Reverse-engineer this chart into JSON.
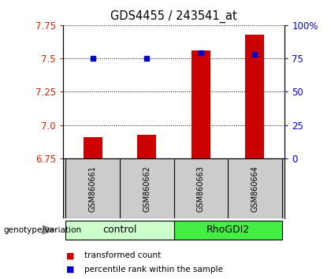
{
  "title": "GDS4455 / 243541_at",
  "samples": [
    "GSM860661",
    "GSM860662",
    "GSM860663",
    "GSM860664"
  ],
  "group_names": [
    "control",
    "RhoGDI2"
  ],
  "group_colors_light": [
    "#ccffcc",
    "#44ee44"
  ],
  "bar_values": [
    6.91,
    6.93,
    7.56,
    7.68
  ],
  "percentile_values": [
    75,
    75,
    79,
    78
  ],
  "ylim_left": [
    6.75,
    7.75
  ],
  "yticks_left": [
    6.75,
    7.0,
    7.25,
    7.5,
    7.75
  ],
  "yticks_right": [
    0,
    25,
    50,
    75,
    100
  ],
  "ytick_labels_right": [
    "0",
    "25",
    "50",
    "75",
    "100%"
  ],
  "bar_color": "#cc0000",
  "dot_color": "#0000cc",
  "left_tick_color": "#cc2200",
  "right_tick_color": "#0000cc",
  "legend_items": [
    "transformed count",
    "percentile rank within the sample"
  ],
  "legend_colors": [
    "#cc0000",
    "#0000cc"
  ],
  "bar_width": 0.35,
  "sample_panel_color": "#cccccc",
  "genotype_label": "genotype/variation"
}
